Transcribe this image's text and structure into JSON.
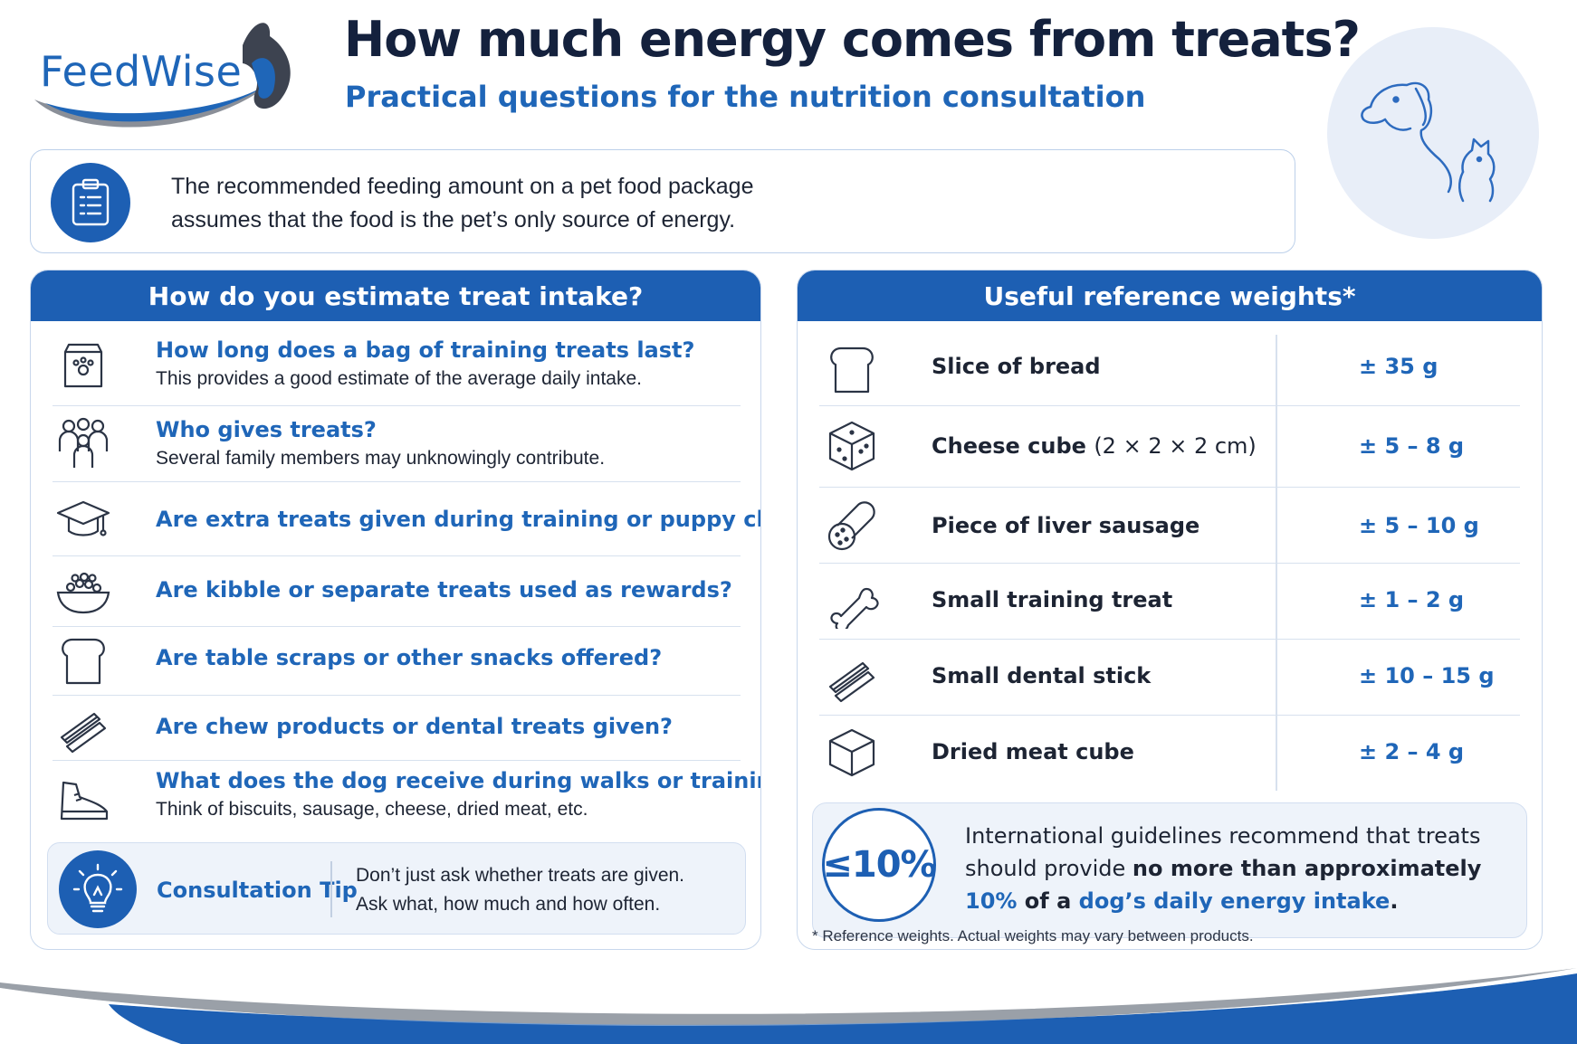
{
  "brand": {
    "name": "FeedWise"
  },
  "header": {
    "title": "How much energy comes from treats?",
    "subtitle": "Practical questions for the nutrition consultation"
  },
  "intro": {
    "icon": "clipboard-icon",
    "line1": "The recommended feeding amount on a pet food package",
    "line2": "assumes that the food is the pet’s only source of energy."
  },
  "left_panel": {
    "title": "How do you estimate treat intake?",
    "questions": [
      {
        "icon": "treat-bag-icon",
        "title": "How long does a bag of training treats last?",
        "sub": "This provides a good estimate of the average daily intake."
      },
      {
        "icon": "family-icon",
        "title": "Who gives treats?",
        "sub": "Several family members may unknowingly contribute."
      },
      {
        "icon": "graduation-cap-icon",
        "title": "Are extra treats given during training or puppy classes?",
        "sub": ""
      },
      {
        "icon": "kibble-bowl-icon",
        "title": "Are kibble or separate treats used as rewards?",
        "sub": ""
      },
      {
        "icon": "bread-icon",
        "title": "Are table scraps or other snacks offered?",
        "sub": ""
      },
      {
        "icon": "chew-stick-icon",
        "title": "Are chew products or dental treats given?",
        "sub": ""
      },
      {
        "icon": "shoe-icon",
        "title": "What does the dog receive during walks or training?",
        "sub": "Think of biscuits, sausage, cheese, dried meat, etc."
      }
    ],
    "tip": {
      "icon": "lightbulb-icon",
      "label": "Consultation Tip",
      "line1": "Don’t just ask whether treats are given.",
      "line2": "Ask what, how much and how often."
    }
  },
  "right_panel": {
    "title": "Useful reference weights*",
    "weights": [
      {
        "icon": "bread-slice-icon",
        "label": "Slice of bread",
        "dim": "",
        "value": "± 35 g"
      },
      {
        "icon": "cheese-cube-icon",
        "label": "Cheese cube",
        "dim": "(2 × 2 × 2 cm)",
        "value": "± 5 – 8 g"
      },
      {
        "icon": "sausage-icon",
        "label": "Piece of liver sausage",
        "dim": "",
        "value": "± 5 – 10 g"
      },
      {
        "icon": "bone-icon",
        "label": "Small training treat",
        "dim": "",
        "value": "± 1 – 2 g"
      },
      {
        "icon": "dental-stick-icon",
        "label": "Small dental stick",
        "dim": "",
        "value": "± 10 – 15 g"
      },
      {
        "icon": "meat-cube-icon",
        "label": "Dried meat cube",
        "dim": "",
        "value": "± 2 – 4 g"
      }
    ],
    "guideline": {
      "percent": "≤10%",
      "line1": "International guidelines recommend that treats",
      "line2_a": "should provide ",
      "line2_b": "no more than approximately",
      "line3_a": "10%",
      "line3_b": " of a ",
      "line3_c": "dog’s daily energy intake",
      "line3_d": "."
    },
    "footnote": "* Reference weights. Actual weights may vary between products."
  },
  "colors": {
    "primary": "#1d5fb3",
    "accent": "#1f66b8",
    "text": "#1d2433",
    "panel_bg": "#eef3fa"
  }
}
